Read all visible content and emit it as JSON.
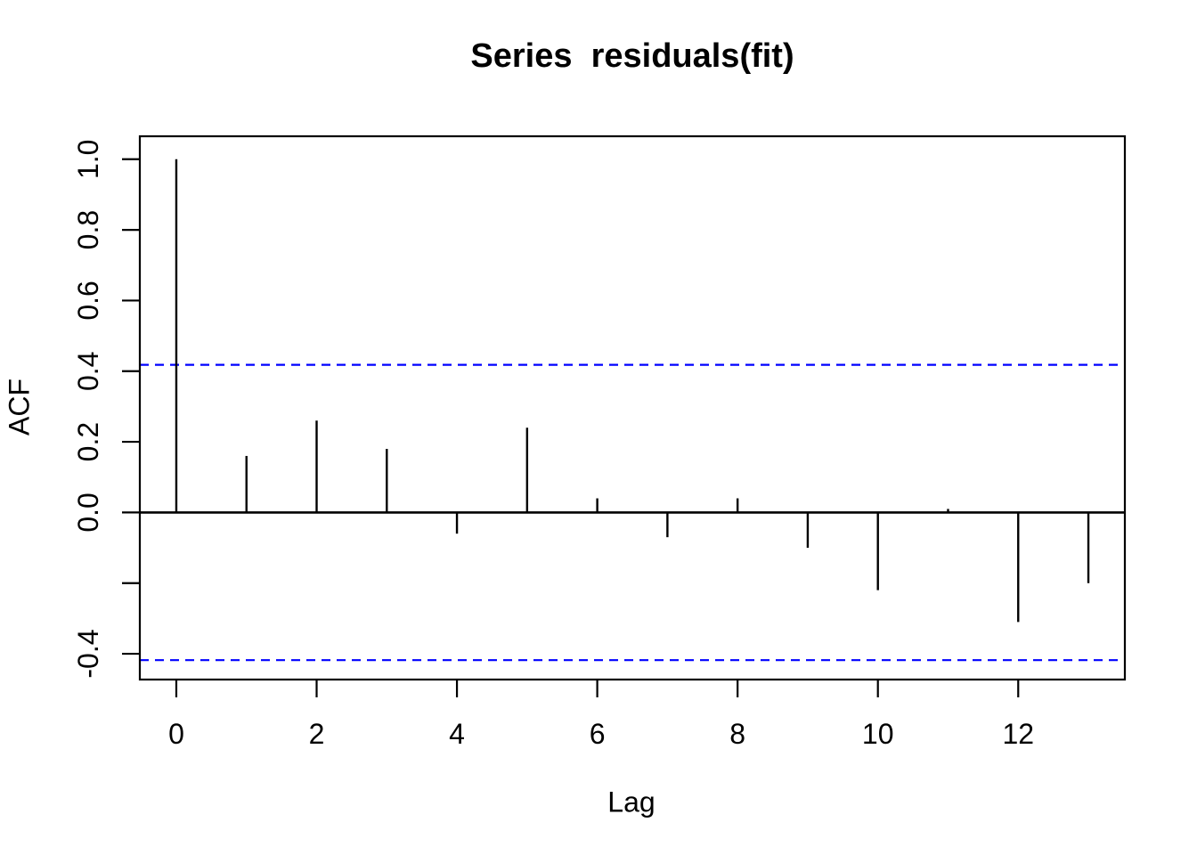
{
  "chart_data": {
    "type": "bar",
    "variant": "acf-stick-plot",
    "title": "Series  residuals(fit)",
    "xlabel": "Lag",
    "ylabel": "ACF",
    "x": [
      0,
      1,
      2,
      3,
      4,
      5,
      6,
      7,
      8,
      9,
      10,
      11,
      12,
      13
    ],
    "values": [
      1.0,
      0.16,
      0.26,
      0.18,
      -0.06,
      0.24,
      0.04,
      -0.07,
      0.04,
      -0.1,
      -0.22,
      0.01,
      -0.31,
      -0.2
    ],
    "confidence_bounds": {
      "upper": 0.418,
      "lower": -0.418,
      "line_style": "dashed",
      "color": "#0000ff"
    },
    "xlim": [
      -0.52,
      13.52
    ],
    "ylim": [
      -0.473,
      1.065
    ],
    "x_ticks": [
      {
        "v": 0,
        "label": "0"
      },
      {
        "v": 2,
        "label": "2"
      },
      {
        "v": 4,
        "label": "4"
      },
      {
        "v": 6,
        "label": "6"
      },
      {
        "v": 8,
        "label": "8"
      },
      {
        "v": 10,
        "label": "10"
      },
      {
        "v": 12,
        "label": "12"
      }
    ],
    "y_ticks": [
      {
        "v": 1.0,
        "label": "1.0"
      },
      {
        "v": 0.8,
        "label": "0.8"
      },
      {
        "v": 0.6,
        "label": "0.6"
      },
      {
        "v": 0.4,
        "label": "0.4"
      },
      {
        "v": 0.2,
        "label": "0.2"
      },
      {
        "v": 0.0,
        "label": "0.0"
      },
      {
        "v": -0.2,
        "label": ""
      },
      {
        "v": -0.4,
        "label": "-0.4"
      }
    ],
    "grid": false,
    "legend_position": "none",
    "colors": {
      "spike": "#000000",
      "frame": "#000000",
      "background": "#ffffff",
      "conf": "#0000ff"
    }
  }
}
